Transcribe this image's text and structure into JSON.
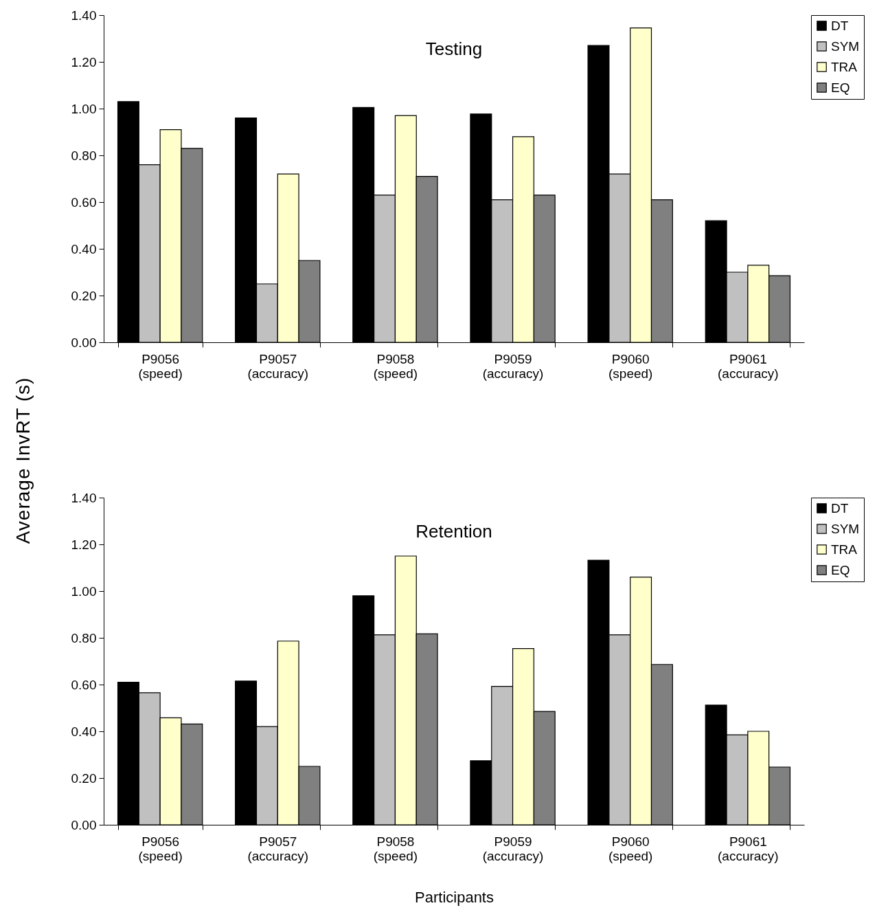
{
  "chart_data": [
    {
      "type": "bar",
      "title": "Testing",
      "ylabel": "Average InvRT (s)",
      "categories": [
        "P9056\n(speed)",
        "P9057\n(accuracy)",
        "P9058\n(speed)",
        "P9059\n(accuracy)",
        "P9060\n(speed)",
        "P9061\n(accuracy)"
      ],
      "series": [
        {
          "name": "DT",
          "color": "#000000",
          "values": [
            1.03,
            0.96,
            1.005,
            0.977,
            1.27,
            0.52
          ]
        },
        {
          "name": "SYM",
          "color": "#c0c0c0",
          "values": [
            0.76,
            0.25,
            0.63,
            0.61,
            0.72,
            0.3
          ]
        },
        {
          "name": "TRA",
          "color": "#ffffcc",
          "values": [
            0.91,
            0.72,
            0.97,
            0.88,
            1.345,
            0.33
          ]
        },
        {
          "name": "EQ",
          "color": "#808080",
          "values": [
            0.83,
            0.35,
            0.71,
            0.63,
            0.61,
            0.285
          ]
        }
      ],
      "ylim": [
        0,
        1.4
      ],
      "yticks": [
        {
          "value": 0,
          "label": "0.00"
        },
        {
          "value": 0.2,
          "label": "0.20"
        },
        {
          "value": 0.4,
          "label": "0.40"
        },
        {
          "value": 0.6,
          "label": "0.60"
        },
        {
          "value": 0.8,
          "label": "0.80"
        },
        {
          "value": 1,
          "label": "1.00"
        },
        {
          "value": 1.2,
          "label": "1.20"
        },
        {
          "value": 1.4,
          "label": "1.40"
        }
      ],
      "legend": "right",
      "grid": false
    },
    {
      "type": "bar",
      "title": "Retention",
      "xlabel": "Participants",
      "categories": [
        "P9056\n(speed)",
        "P9057\n(accuracy)",
        "P9058\n(speed)",
        "P9059\n(accuracy)",
        "P9060\n(speed)",
        "P9061\n(accuracy)"
      ],
      "series": [
        {
          "name": "DT",
          "color": "#000000",
          "values": [
            0.61,
            0.615,
            0.98,
            0.274,
            1.132,
            0.512
          ]
        },
        {
          "name": "SYM",
          "color": "#c0c0c0",
          "values": [
            0.565,
            0.42,
            0.813,
            0.592,
            0.813,
            0.385
          ]
        },
        {
          "name": "TRA",
          "color": "#ffffcc",
          "values": [
            0.458,
            0.786,
            1.15,
            0.754,
            1.06,
            0.4
          ]
        },
        {
          "name": "EQ",
          "color": "#808080",
          "values": [
            0.431,
            0.25,
            0.817,
            0.485,
            0.686,
            0.247
          ]
        }
      ],
      "ylim": [
        0,
        1.4
      ],
      "yticks": [
        {
          "value": 0,
          "label": "0.00"
        },
        {
          "value": 0.2,
          "label": "0.20"
        },
        {
          "value": 0.4,
          "label": "0.40"
        },
        {
          "value": 0.6,
          "label": "0.60"
        },
        {
          "value": 0.8,
          "label": "0.80"
        },
        {
          "value": 1,
          "label": "1.00"
        },
        {
          "value": 1.2,
          "label": "1.20"
        },
        {
          "value": 1.4,
          "label": "1.40"
        }
      ],
      "legend": "right",
      "grid": false
    }
  ]
}
